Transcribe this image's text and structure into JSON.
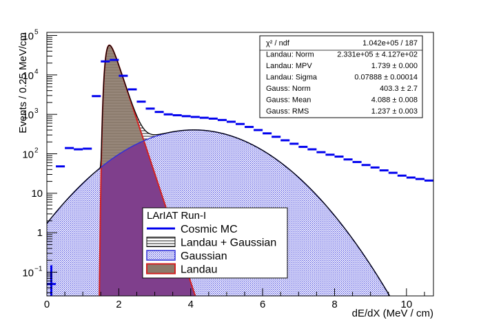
{
  "chart_data": {
    "type": "histogram",
    "xlabel": "dE/dX (MeV / cm)",
    "ylabel": "Events / 0.25 MeV/cm",
    "xlim": [
      0,
      10.75
    ],
    "ylim": [
      0.025,
      120000
    ],
    "log_y": true,
    "x_ticks": [
      "0",
      "2",
      "4",
      "6",
      "8",
      "10"
    ],
    "x_tick_values": [
      0,
      2,
      4,
      6,
      8,
      10
    ],
    "y_ticks": [
      {
        "v": 0.1,
        "base": "10",
        "exp": "−1"
      },
      {
        "v": 1,
        "label": "1"
      },
      {
        "v": 10,
        "label": "10"
      },
      {
        "v": 100,
        "base": "10",
        "exp": "2"
      },
      {
        "v": 1000,
        "base": "10",
        "exp": "3"
      },
      {
        "v": 10000,
        "base": "10",
        "exp": "4"
      },
      {
        "v": 100000,
        "base": "10",
        "exp": "5"
      }
    ],
    "colors": {
      "data": "#0000ee",
      "total": "#000000",
      "gauss": "#3030d8",
      "landau": "#d22020",
      "landau_fill": "#8c7a6b",
      "gauss_fill": "#7f3f8c"
    },
    "fit_params": {
      "landau_norm": 233100,
      "landau_mpv": 1.739,
      "landau_sigma": 0.07888,
      "gauss_norm": 403.3,
      "gauss_mean": 4.088,
      "gauss_rms": 1.237
    },
    "series": [
      {
        "name": "Cosmic MC",
        "kind": "data",
        "bin_width": 0.25,
        "bin_centers": [
          0.125,
          0.375,
          0.625,
          0.875,
          1.125,
          1.375,
          1.625,
          1.875,
          2.125,
          2.375,
          2.625,
          2.875,
          3.125,
          3.375,
          3.625,
          3.875,
          4.125,
          4.375,
          4.625,
          4.875,
          5.125,
          5.375,
          5.625,
          5.875,
          6.125,
          6.375,
          6.625,
          6.875,
          7.125,
          7.375,
          7.625,
          7.875,
          8.125,
          8.375,
          8.625,
          8.875,
          9.125,
          9.375,
          9.625,
          9.875,
          10.125,
          10.375,
          10.625
        ],
        "values": [
          0.05,
          48,
          140,
          130,
          135,
          2900,
          22000,
          24000,
          9500,
          4300,
          2100,
          1400,
          1150,
          1000,
          950,
          900,
          860,
          820,
          780,
          720,
          650,
          570,
          480,
          400,
          330,
          270,
          220,
          180,
          150,
          130,
          110,
          95,
          85,
          72,
          62,
          52,
          45,
          38,
          33,
          28,
          25,
          23,
          21
        ]
      },
      {
        "name": "Landau + Gaussian",
        "kind": "fit_total"
      },
      {
        "name": "Gaussian",
        "kind": "fit_gauss"
      },
      {
        "name": "Landau",
        "kind": "fit_landau"
      }
    ],
    "stats_box": [
      {
        "key": "χ² / ndf",
        "value": "1.042e+05 / 187"
      },
      {
        "key": "Landau: Norm",
        "value": "2.331e+05 ± 4.127e+02"
      },
      {
        "key": "Landau: MPV",
        "value": "1.739 ± 0.000"
      },
      {
        "key": "Landau: Sigma",
        "value": "0.07888 ± 0.00014"
      },
      {
        "key": "Gauss: Norm",
        "value": "403.3 ± 2.7"
      },
      {
        "key": "Gauss: Mean",
        "value": "4.088 ± 0.008"
      },
      {
        "key": "Gauss: RMS",
        "value": "1.237 ± 0.003"
      }
    ],
    "legend": {
      "title": "LArIAT Run-I",
      "entries": [
        "Cosmic MC",
        "Landau + Gaussian",
        "Gaussian",
        "Landau"
      ]
    }
  }
}
